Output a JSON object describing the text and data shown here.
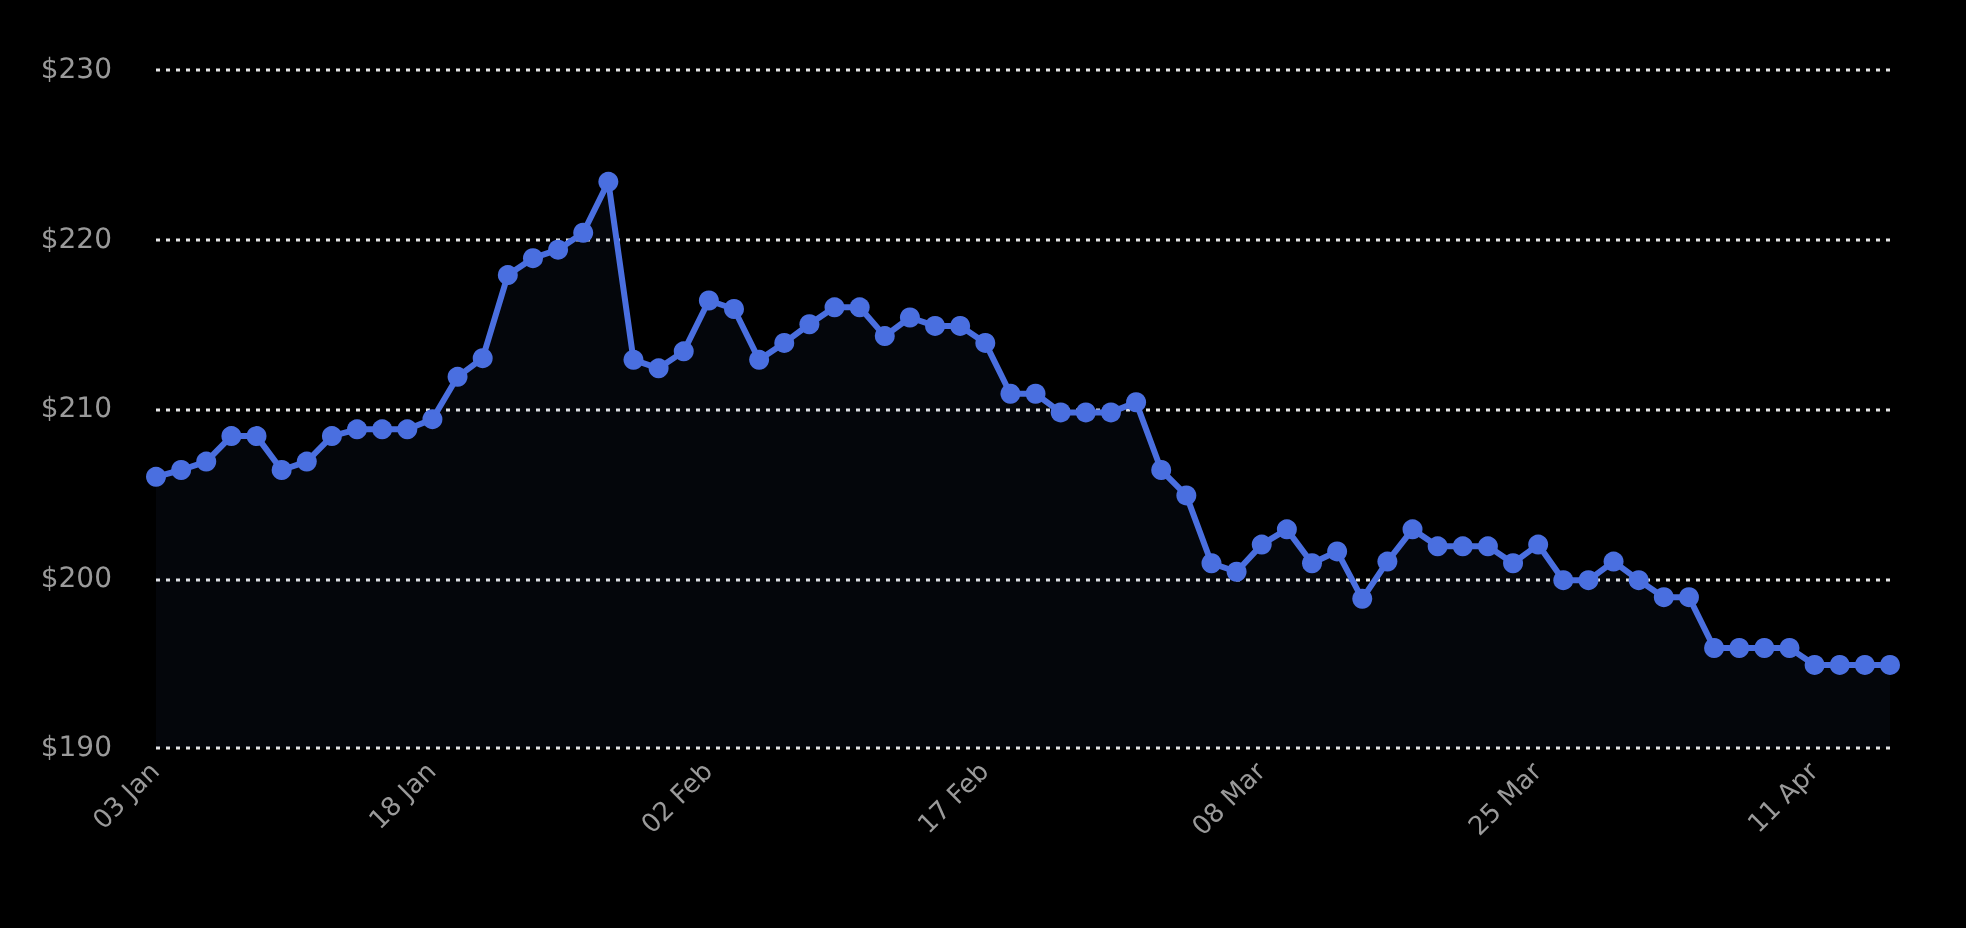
{
  "chart_data": {
    "type": "area",
    "categories": [
      "03 Jan",
      null,
      null,
      null,
      null,
      null,
      null,
      null,
      null,
      null,
      null,
      "18 Jan",
      null,
      null,
      null,
      null,
      null,
      null,
      null,
      null,
      null,
      null,
      "02 Feb",
      null,
      null,
      null,
      null,
      null,
      null,
      null,
      null,
      null,
      null,
      "17 Feb",
      null,
      null,
      null,
      null,
      null,
      null,
      null,
      null,
      null,
      null,
      "08 Mar",
      null,
      null,
      null,
      null,
      null,
      null,
      null,
      null,
      null,
      null,
      "25 Mar",
      null,
      null,
      null,
      null,
      null,
      null,
      null,
      null,
      null,
      null,
      "11 Apr",
      null,
      null,
      null
    ],
    "series": [
      {
        "color": "#4a6fe0",
        "values": [
          206,
          206.4,
          206.9,
          208.4,
          208.4,
          206.4,
          206.9,
          208.4,
          208.8,
          208.8,
          208.8,
          209.4,
          211.9,
          213,
          217.9,
          218.9,
          219.4,
          220.4,
          223.4,
          212.9,
          212.4,
          213.4,
          216.4,
          215.9,
          212.9,
          213.9,
          215,
          216,
          216,
          214.3,
          215.4,
          214.9,
          214.9,
          213.9,
          210.9,
          210.9,
          209.8,
          209.8,
          209.8,
          210.4,
          206.4,
          204.9,
          200.9,
          200.4,
          202,
          202.9,
          200.9,
          201.6,
          198.8,
          201,
          202.9,
          201.9,
          201.9,
          201.9,
          200.9,
          202,
          199.9,
          199.9,
          201,
          199.9,
          198.9,
          198.9,
          195.9,
          195.9,
          195.9,
          195.9,
          194.9,
          194.9,
          194.9,
          194.9
        ]
      }
    ],
    "ylim": [
      190,
      230
    ],
    "yticks": [
      {
        "value": 190,
        "label": "$190"
      },
      {
        "value": 200,
        "label": "$200"
      },
      {
        "value": 210,
        "label": "$210"
      },
      {
        "value": 220,
        "label": "$220"
      },
      {
        "value": 230,
        "label": "$230"
      }
    ],
    "grid": "y",
    "marker": "circle",
    "line_style": "solid"
  }
}
